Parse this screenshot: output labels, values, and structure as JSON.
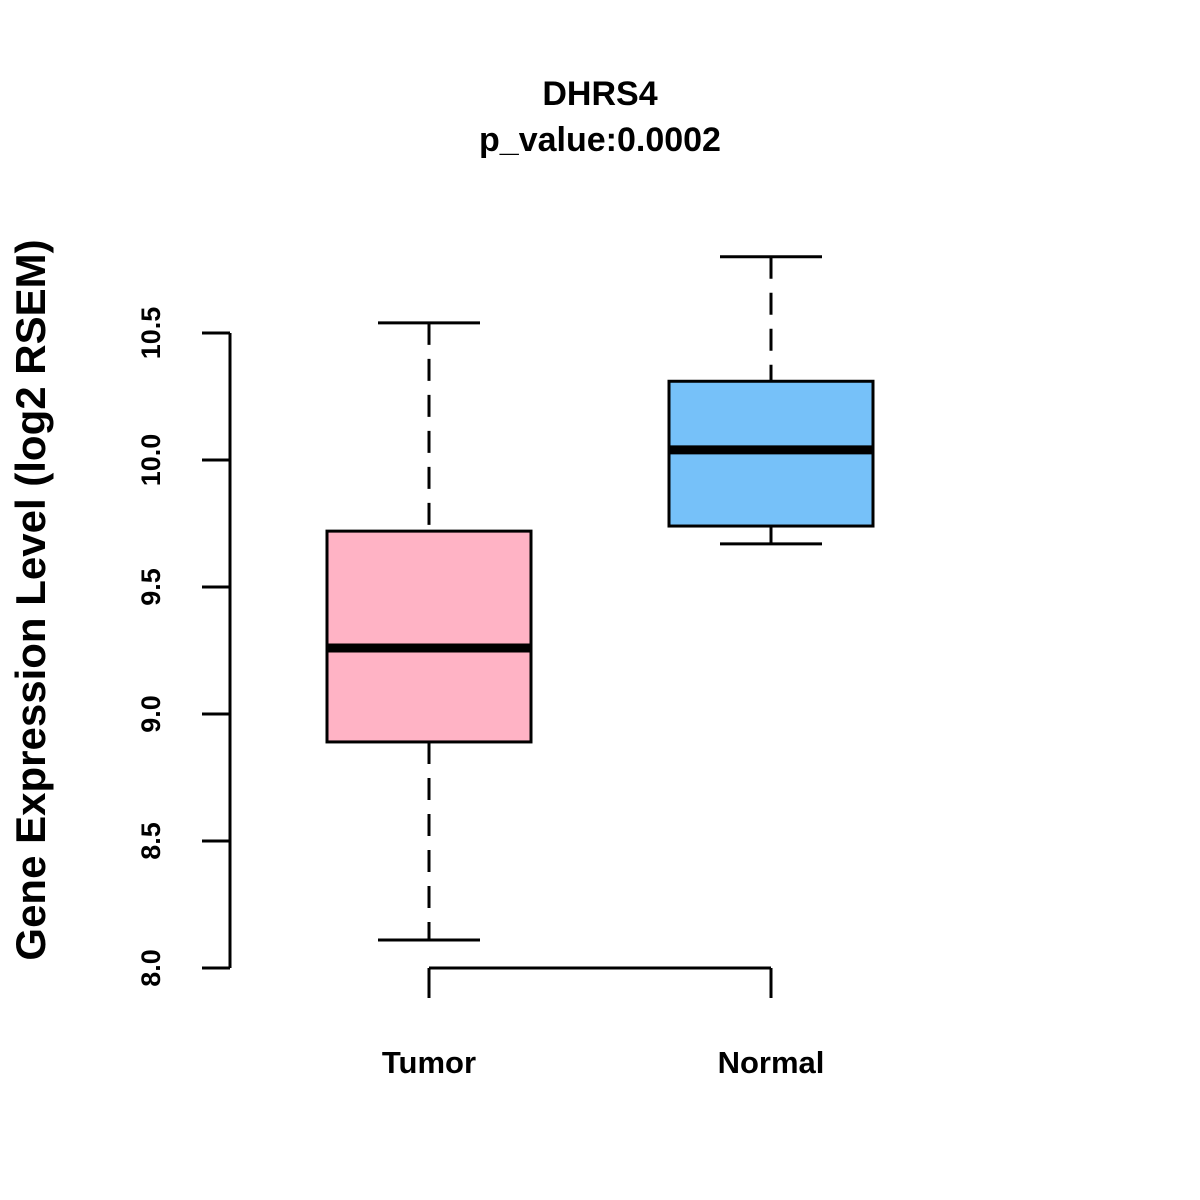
{
  "chart_data": {
    "type": "box",
    "title": "DHRS4",
    "subtitle": "p_value:0.0002",
    "xlabel": "",
    "ylabel": "Gene Expression Level (log2 RSEM)",
    "ylim": [
      8.0,
      10.8
    ],
    "yticks": [
      "8.0",
      "8.5",
      "9.0",
      "9.5",
      "10.0",
      "10.5"
    ],
    "grid": false,
    "categories": [
      "Tumor",
      "Normal"
    ],
    "series": [
      {
        "name": "Tumor",
        "color": "#FFB3C5",
        "whisker_low": 8.11,
        "q1": 8.89,
        "median": 9.26,
        "q3": 9.72,
        "whisker_high": 10.54
      },
      {
        "name": "Normal",
        "color": "#76C1F9",
        "whisker_low": 9.67,
        "q1": 9.74,
        "median": 10.04,
        "q3": 10.31,
        "whisker_high": 10.8
      }
    ]
  }
}
